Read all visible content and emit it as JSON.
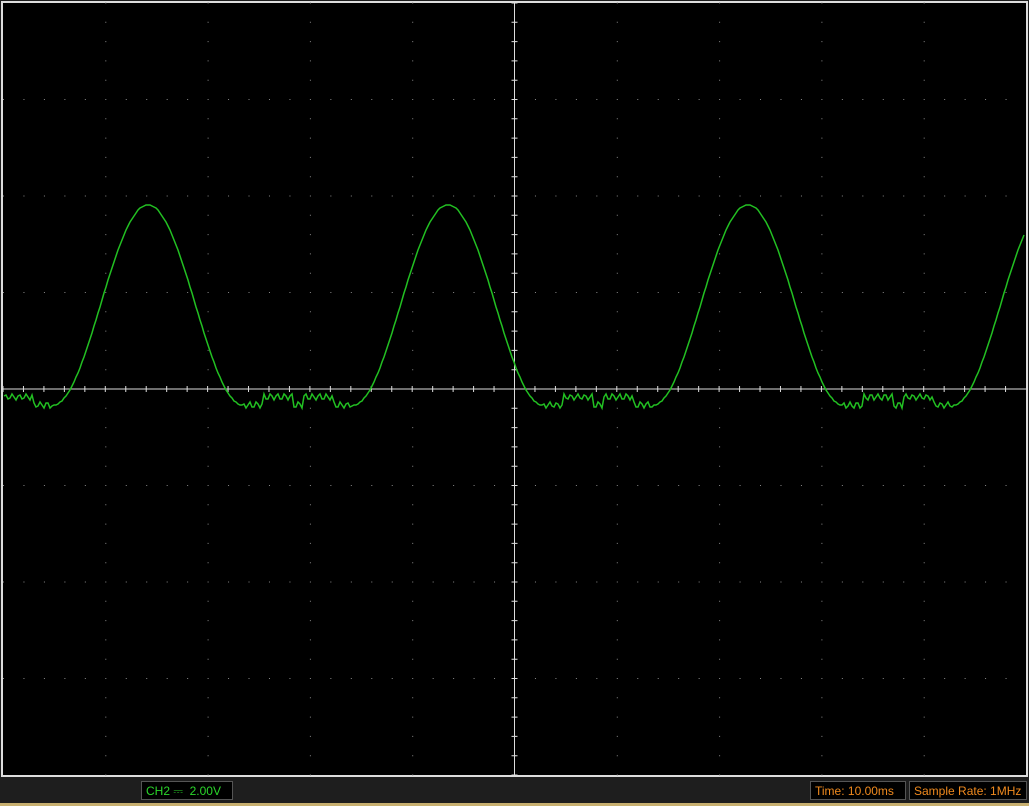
{
  "status_bar": {
    "channel": "CH2 ⎓",
    "volts_per_div": "2.00V",
    "time_per_div": "Time: 10.00ms",
    "sample_rate": "Sample Rate: 1MHz"
  }
}
